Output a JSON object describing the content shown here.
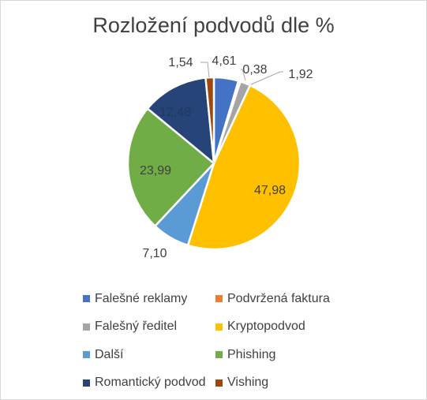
{
  "chart_data": {
    "type": "pie",
    "title": "Rozložení podvodů dle %",
    "series": [
      {
        "categories": [
          "Falešné reklamy",
          "Podvržená faktura",
          "Falešný ředitel",
          "Kryptopodvod",
          "Další",
          "Phishing",
          "Romantický podvod",
          "Vishing"
        ],
        "values": [
          4.61,
          0.38,
          1.92,
          47.98,
          7.1,
          23.99,
          12.48,
          1.54
        ],
        "value_labels": [
          "4,61",
          "0,38",
          "1,92",
          "47,98",
          "7,10",
          "23,99",
          "12,48",
          "1,54"
        ],
        "colors": [
          "#4472C4",
          "#ED7D31",
          "#A5A5A5",
          "#FFC000",
          "#5B9BD5",
          "#70AD47",
          "#264478",
          "#9E480E"
        ]
      }
    ],
    "legend_position": "bottom"
  }
}
